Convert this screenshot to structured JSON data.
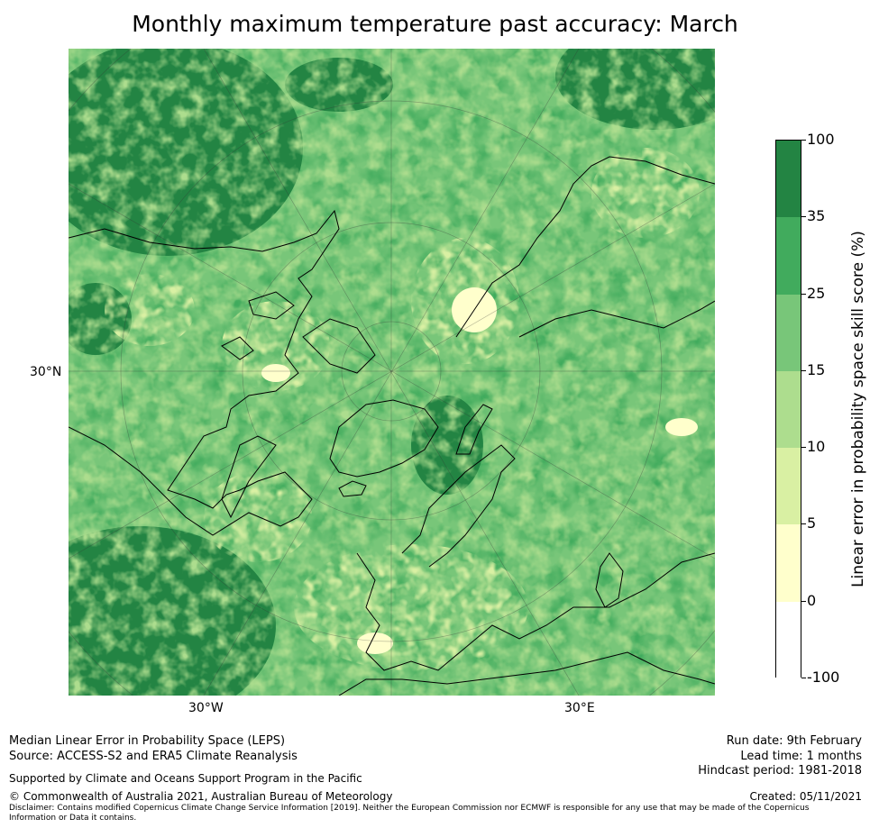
{
  "title": "Monthly maximum temperature past accuracy: March",
  "axis_labels": {
    "lat_left": "30°N",
    "lon_left": "30°W",
    "lon_right": "30°E"
  },
  "colorbar": {
    "label": "Linear error in probability space skill score (%)",
    "ticks": [
      "100",
      "35",
      "25",
      "15",
      "10",
      "5",
      "0",
      "-100"
    ],
    "bins": [
      {
        "range": "35 to 100",
        "color": "#238443"
      },
      {
        "range": "25 to 35",
        "color": "#41ab5d"
      },
      {
        "range": "15 to 25",
        "color": "#78c679"
      },
      {
        "range": "10 to 15",
        "color": "#addd8e"
      },
      {
        "range": "5 to 10",
        "color": "#d9f0a3"
      },
      {
        "range": "0 to 5",
        "color": "#ffffcc"
      },
      {
        "range": "-100 to 0",
        "color": "#ffffff"
      }
    ]
  },
  "footer": {
    "left_line1": "Median Linear Error in Probability Space (LEPS)",
    "left_line2": "Source: ACCESS-S2 and ERA5 Climate Reanalysis",
    "support": "Supported by Climate and Oceans Support Program in the Pacific",
    "copyright": "© Commonwealth of Australia 2021, Australian Bureau of Meteorology",
    "disclaimer": "Disclaimer: Contains modified Copernicus Climate Change Service Information [2019]. Neither the European Commission nor ECMWF is responsible for any use that may be made of the Copernicus Information or Data it contains.",
    "run_date": "Run date: 9th February",
    "lead_time": "Lead time: 1 months",
    "hindcast": "Hindcast period: 1981-2018",
    "created": "Created: 05/11/2021"
  }
}
